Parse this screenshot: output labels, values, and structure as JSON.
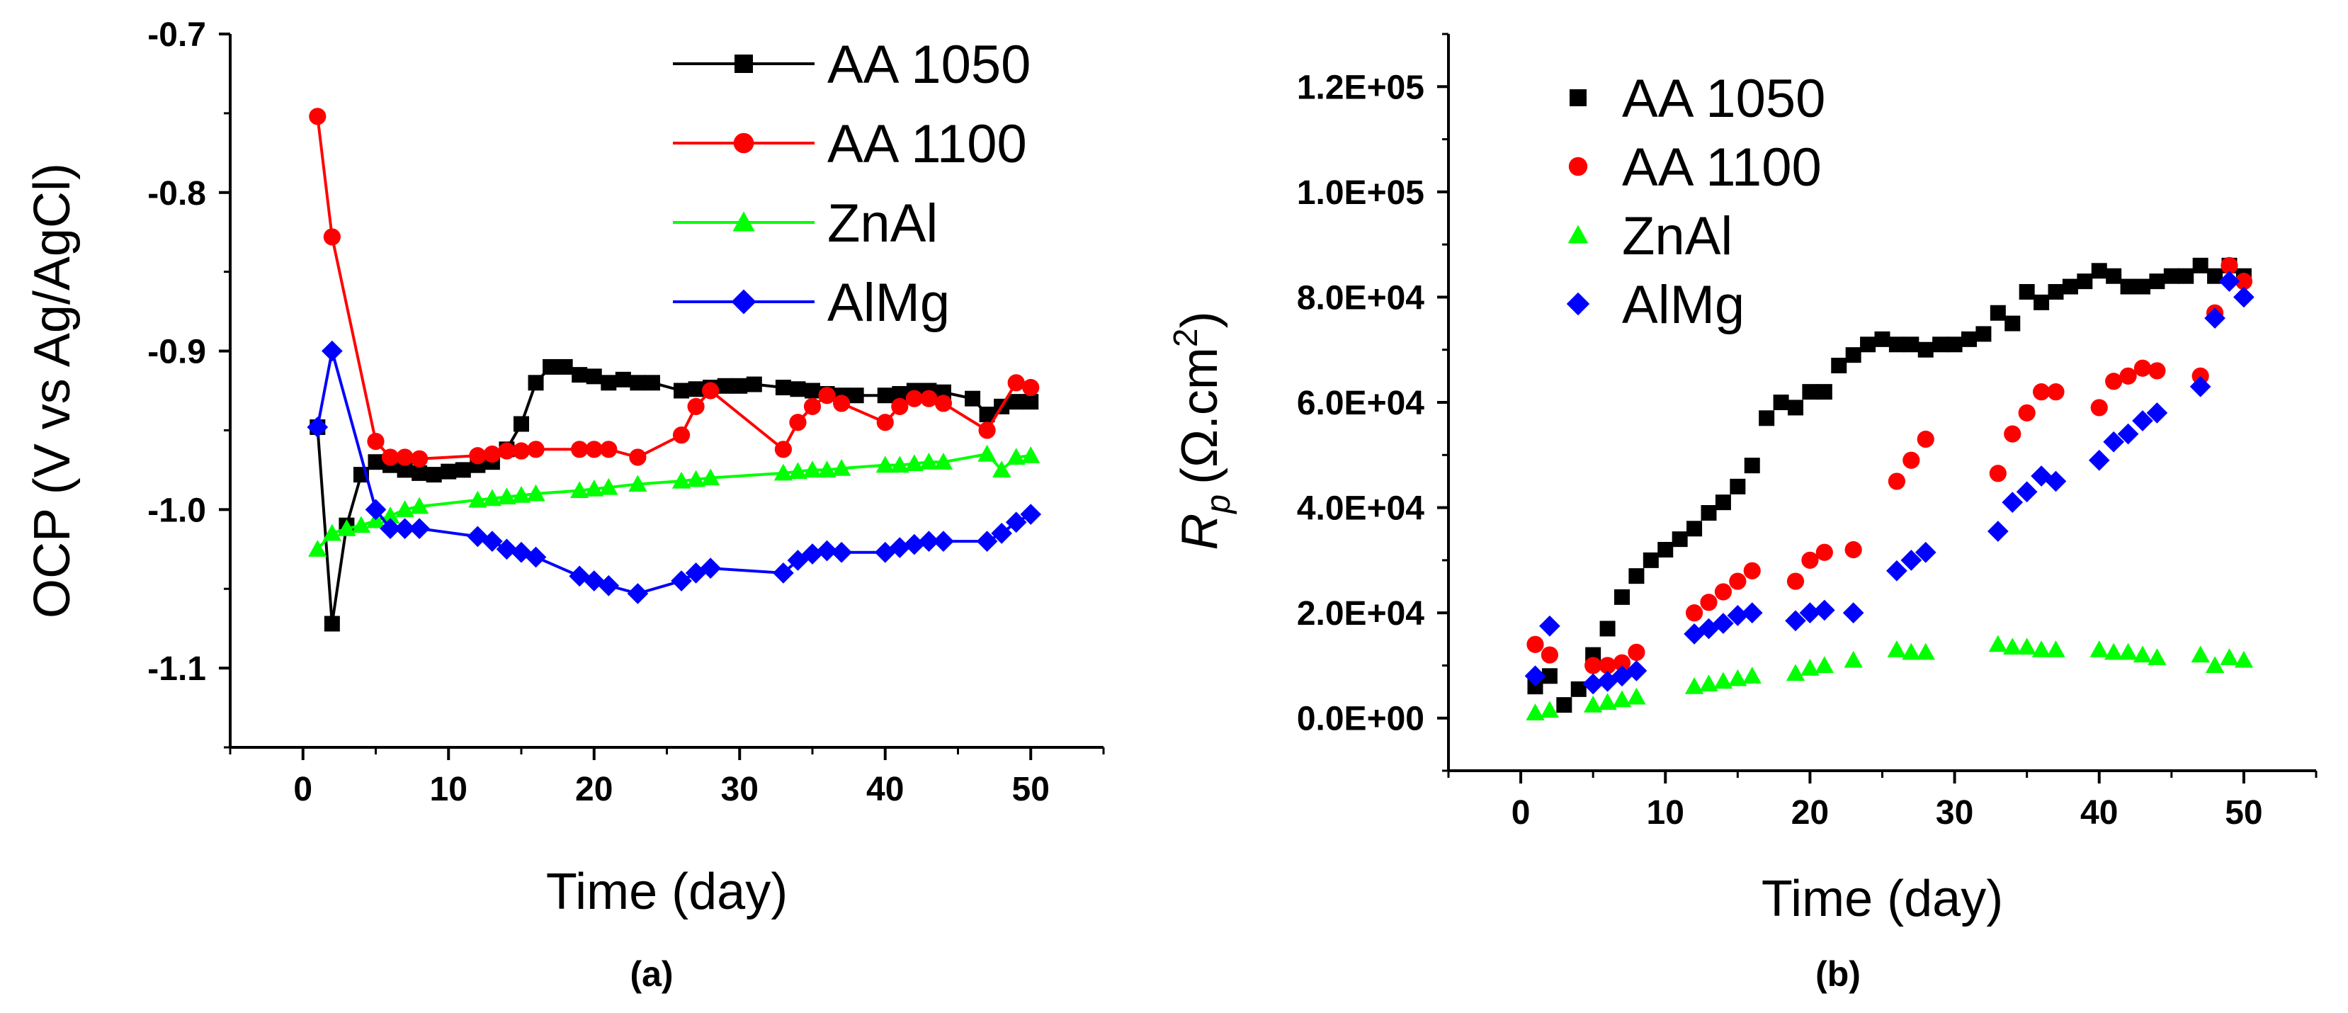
{
  "figure": {
    "panel_a_label": "(a)",
    "panel_b_label": "(b)"
  },
  "chart_data": [
    {
      "type": "line",
      "panel": "(a)",
      "xlabel": "Time (day)",
      "ylabel": "OCP (V vs Ag/AgCl)",
      "xlim": [
        -5,
        55
      ],
      "ylim": [
        -1.15,
        -0.7
      ],
      "y_reversed": true,
      "xticks": [
        0,
        10,
        20,
        30,
        40,
        50
      ],
      "yticks": [
        -0.7,
        -0.8,
        -0.9,
        -1.0,
        -1.1
      ],
      "ytick_labels": [
        "-0.7",
        "-0.8",
        "-0.9",
        "-1.0",
        "-1.1"
      ],
      "legend_position": "top-right",
      "series": [
        {
          "name": "AA 1050",
          "color": "#000000",
          "marker": "square",
          "x": [
            1,
            2,
            3,
            4,
            5,
            6,
            7,
            8,
            9,
            10,
            11,
            12,
            13,
            14,
            15,
            16,
            17,
            18,
            19,
            20,
            21,
            22,
            23,
            24,
            26,
            27,
            28,
            29,
            30,
            31,
            33,
            34,
            35,
            36,
            37,
            38,
            40,
            41,
            42,
            43,
            44,
            46,
            47,
            48,
            49,
            50
          ],
          "y": [
            -0.948,
            -1.072,
            -1.01,
            -0.978,
            -0.97,
            -0.972,
            -0.975,
            -0.977,
            -0.978,
            -0.976,
            -0.975,
            -0.972,
            -0.97,
            -0.962,
            -0.946,
            -0.92,
            -0.91,
            -0.91,
            -0.915,
            -0.916,
            -0.92,
            -0.918,
            -0.92,
            -0.92,
            -0.925,
            -0.924,
            -0.923,
            -0.922,
            -0.922,
            -0.921,
            -0.923,
            -0.924,
            -0.925,
            -0.927,
            -0.928,
            -0.928,
            -0.928,
            -0.927,
            -0.925,
            -0.925,
            -0.926,
            -0.93,
            -0.94,
            -0.935,
            -0.932,
            -0.932
          ]
        },
        {
          "name": "AA 1100",
          "color": "#ff0000",
          "marker": "circle",
          "x": [
            1,
            2,
            5,
            6,
            7,
            8,
            12,
            13,
            14,
            15,
            16,
            19,
            20,
            21,
            23,
            26,
            27,
            28,
            33,
            34,
            35,
            36,
            37,
            40,
            41,
            42,
            43,
            44,
            47,
            49,
            50
          ],
          "y": [
            -0.752,
            -0.828,
            -0.957,
            -0.967,
            -0.967,
            -0.968,
            -0.966,
            -0.965,
            -0.963,
            -0.963,
            -0.962,
            -0.962,
            -0.962,
            -0.962,
            -0.967,
            -0.953,
            -0.935,
            -0.925,
            -0.962,
            -0.945,
            -0.935,
            -0.928,
            -0.933,
            -0.945,
            -0.935,
            -0.93,
            -0.93,
            -0.933,
            -0.95,
            -0.92,
            -0.923
          ]
        },
        {
          "name": "ZnAl",
          "color": "#00ff00",
          "marker": "triangle",
          "x": [
            1,
            2,
            3,
            4,
            5,
            6,
            7,
            8,
            12,
            13,
            14,
            15,
            16,
            19,
            20,
            21,
            23,
            26,
            27,
            28,
            33,
            34,
            35,
            36,
            37,
            40,
            41,
            42,
            43,
            44,
            47,
            48,
            49,
            50
          ],
          "y": [
            -1.025,
            -1.015,
            -1.012,
            -1.01,
            -1.007,
            -1.004,
            -1.0,
            -0.998,
            -0.994,
            -0.993,
            -0.992,
            -0.991,
            -0.99,
            -0.988,
            -0.987,
            -0.986,
            -0.984,
            -0.982,
            -0.981,
            -0.98,
            -0.977,
            -0.976,
            -0.975,
            -0.975,
            -0.974,
            -0.972,
            -0.972,
            -0.971,
            -0.97,
            -0.97,
            -0.965,
            -0.975,
            -0.967,
            -0.966
          ]
        },
        {
          "name": "AlMg",
          "color": "#0000ff",
          "marker": "diamond",
          "x": [
            1,
            2,
            5,
            6,
            7,
            8,
            12,
            13,
            14,
            15,
            16,
            19,
            20,
            21,
            23,
            26,
            27,
            28,
            33,
            34,
            35,
            36,
            37,
            40,
            41,
            42,
            43,
            44,
            47,
            48,
            49,
            50
          ],
          "y": [
            -0.948,
            -0.9,
            -1.0,
            -1.012,
            -1.012,
            -1.012,
            -1.017,
            -1.02,
            -1.025,
            -1.027,
            -1.03,
            -1.042,
            -1.045,
            -1.048,
            -1.053,
            -1.045,
            -1.04,
            -1.037,
            -1.04,
            -1.032,
            -1.028,
            -1.026,
            -1.027,
            -1.027,
            -1.024,
            -1.022,
            -1.02,
            -1.02,
            -1.02,
            -1.015,
            -1.008,
            -1.003
          ]
        }
      ]
    },
    {
      "type": "scatter",
      "panel": "(b)",
      "xlabel": "Time (day)",
      "ylabel_main": "R",
      "ylabel_sub": "p",
      "ylabel_unit": "(Ω.cm",
      "ylabel_sup": "2",
      "ylabel_close": ")",
      "xlim": [
        -5,
        55
      ],
      "ylim": [
        -10000,
        130000
      ],
      "xticks": [
        0,
        10,
        20,
        30,
        40,
        50
      ],
      "yticks": [
        0,
        20000,
        40000,
        60000,
        80000,
        100000,
        120000
      ],
      "ytick_labels": [
        "0.0E+00",
        "2.0E+04",
        "4.0E+04",
        "6.0E+04",
        "8.0E+04",
        "1.0E+05",
        "1.2E+05"
      ],
      "legend_position": "top-left",
      "series": [
        {
          "name": "AA 1050",
          "color": "#000000",
          "marker": "square",
          "x": [
            1,
            2,
            3,
            4,
            5,
            6,
            7,
            8,
            9,
            10,
            11,
            12,
            13,
            14,
            15,
            16,
            17,
            18,
            19,
            20,
            21,
            22,
            23,
            24,
            25,
            26,
            27,
            28,
            29,
            30,
            31,
            32,
            33,
            34,
            35,
            36,
            37,
            38,
            39,
            40,
            41,
            42,
            43,
            44,
            45,
            46,
            47,
            48,
            49,
            50
          ],
          "y": [
            6000,
            8000,
            2500,
            5500,
            12000,
            17000,
            23000,
            27000,
            30000,
            32000,
            34000,
            36000,
            39000,
            41000,
            44000,
            48000,
            57000,
            60000,
            59000,
            62000,
            62000,
            67000,
            69000,
            71000,
            72000,
            71000,
            71000,
            70000,
            71000,
            71000,
            72000,
            73000,
            77000,
            75000,
            81000,
            79000,
            81000,
            82000,
            83000,
            85000,
            84000,
            82000,
            82000,
            83000,
            84000,
            84000,
            86000,
            84000,
            86000,
            84000
          ]
        },
        {
          "name": "AA 1100",
          "color": "#ff0000",
          "marker": "circle",
          "x": [
            1,
            2,
            5,
            6,
            7,
            8,
            12,
            13,
            14,
            15,
            16,
            19,
            20,
            21,
            23,
            26,
            27,
            28,
            33,
            34,
            35,
            36,
            37,
            40,
            41,
            42,
            43,
            44,
            47,
            48,
            49,
            50
          ],
          "y": [
            14000,
            12000,
            10000,
            10000,
            10500,
            12500,
            20000,
            22000,
            24000,
            26000,
            28000,
            26000,
            30000,
            31500,
            32000,
            45000,
            49000,
            53000,
            46500,
            54000,
            58000,
            62000,
            62000,
            59000,
            64000,
            65000,
            66500,
            66000,
            65000,
            77000,
            86000,
            83000
          ]
        },
        {
          "name": "ZnAl",
          "color": "#00ff00",
          "marker": "triangle",
          "x": [
            1,
            2,
            5,
            6,
            7,
            8,
            12,
            13,
            14,
            15,
            16,
            19,
            20,
            21,
            23,
            26,
            27,
            28,
            33,
            34,
            35,
            36,
            37,
            40,
            41,
            42,
            43,
            44,
            47,
            48,
            49,
            50
          ],
          "y": [
            1000,
            1500,
            2500,
            3000,
            3500,
            4000,
            6000,
            6500,
            7000,
            7500,
            8000,
            8500,
            9500,
            10000,
            11000,
            13000,
            12500,
            12500,
            14000,
            13500,
            13500,
            13000,
            13000,
            13000,
            12500,
            12500,
            12000,
            11500,
            12000,
            10000,
            11500,
            11000
          ]
        },
        {
          "name": "AlMg",
          "color": "#0000ff",
          "marker": "diamond",
          "x": [
            1,
            2,
            5,
            6,
            7,
            8,
            12,
            13,
            14,
            15,
            16,
            19,
            20,
            21,
            23,
            26,
            27,
            28,
            33,
            34,
            35,
            36,
            37,
            40,
            41,
            42,
            43,
            44,
            47,
            48,
            49,
            50
          ],
          "y": [
            8000,
            17500,
            6500,
            7000,
            8000,
            9000,
            16000,
            17000,
            18000,
            19500,
            20000,
            18500,
            20000,
            20500,
            20000,
            28000,
            30000,
            31500,
            35500,
            41000,
            43000,
            46000,
            45000,
            49000,
            52500,
            54000,
            56500,
            58000,
            63000,
            76000,
            83000,
            80000
          ]
        }
      ]
    }
  ]
}
